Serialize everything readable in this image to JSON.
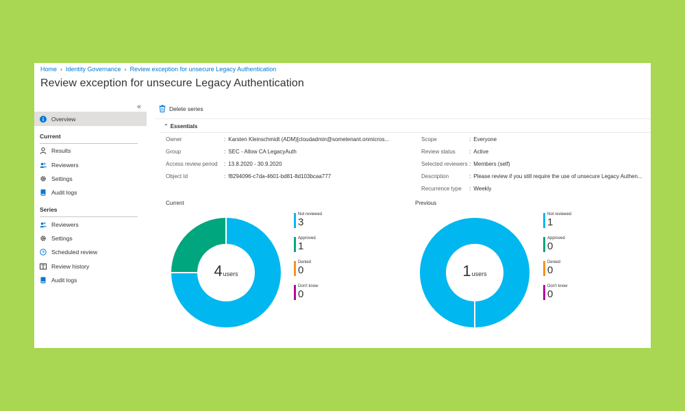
{
  "colors": {
    "background": "#a9d753",
    "link": "#0078d4",
    "not_reviewed": "#00b7f0",
    "approved": "#00a67e",
    "denied": "#f7911c",
    "dont_know": "#b4009e"
  },
  "breadcrumb": {
    "items": [
      "Home",
      "Identity Governance",
      "Review exception for unsecure Legacy Authentication"
    ]
  },
  "page_title": "Review exception for unsecure Legacy Authentication",
  "sidebar": {
    "collapse_icon": "«",
    "overview": {
      "label": "Overview",
      "icon": "info-icon"
    },
    "current_section": "Current",
    "current_items": [
      {
        "label": "Results",
        "icon": "person-icon"
      },
      {
        "label": "Reviewers",
        "icon": "people-icon"
      },
      {
        "label": "Settings",
        "icon": "gear-icon"
      },
      {
        "label": "Audit logs",
        "icon": "book-icon"
      }
    ],
    "series_section": "Series",
    "series_items": [
      {
        "label": "Reviewers",
        "icon": "people-icon"
      },
      {
        "label": "Settings",
        "icon": "gear-icon"
      },
      {
        "label": "Scheduled review",
        "icon": "clock-icon"
      },
      {
        "label": "Review history",
        "icon": "history-icon"
      },
      {
        "label": "Audit logs",
        "icon": "book-icon"
      }
    ]
  },
  "toolbar": {
    "delete_series": "Delete series"
  },
  "essentials": {
    "label": "Essentials",
    "left": [
      {
        "key": "Owner",
        "value": "Karsten Kleinschmidt (ADM)[cloudadmin@sometenant.onmicros..."
      },
      {
        "key": "Group",
        "value": "SEC - Allow CA LegacyAuth"
      },
      {
        "key": "Access review period",
        "value": "13.8.2020 - 30.9.2020"
      },
      {
        "key": "Object Id",
        "value": "f8294096-c7da-4601-bd81-8d103bcaa777"
      }
    ],
    "right": [
      {
        "key": "Scope",
        "value": "Everyone"
      },
      {
        "key": "Review status",
        "value": "Active"
      },
      {
        "key": "Selected reviewers",
        "value": "Members (self)"
      },
      {
        "key": "Description",
        "value": "Please review if you still require the use of unsecure Legacy Authen..."
      },
      {
        "key": "Recurrence type",
        "value": "Weekly"
      }
    ]
  },
  "chart_data": [
    {
      "type": "pie",
      "title": "Current",
      "center_value": "4",
      "center_unit": "users",
      "categories": [
        "Not reviewed",
        "Approved",
        "Denied",
        "Don't know"
      ],
      "values": [
        3,
        1,
        0,
        0
      ]
    },
    {
      "type": "pie",
      "title": "Previous",
      "center_value": "1",
      "center_unit": "users",
      "categories": [
        "Not reviewed",
        "Approved",
        "Denied",
        "Don't know"
      ],
      "values": [
        1,
        0,
        0,
        0
      ]
    }
  ]
}
